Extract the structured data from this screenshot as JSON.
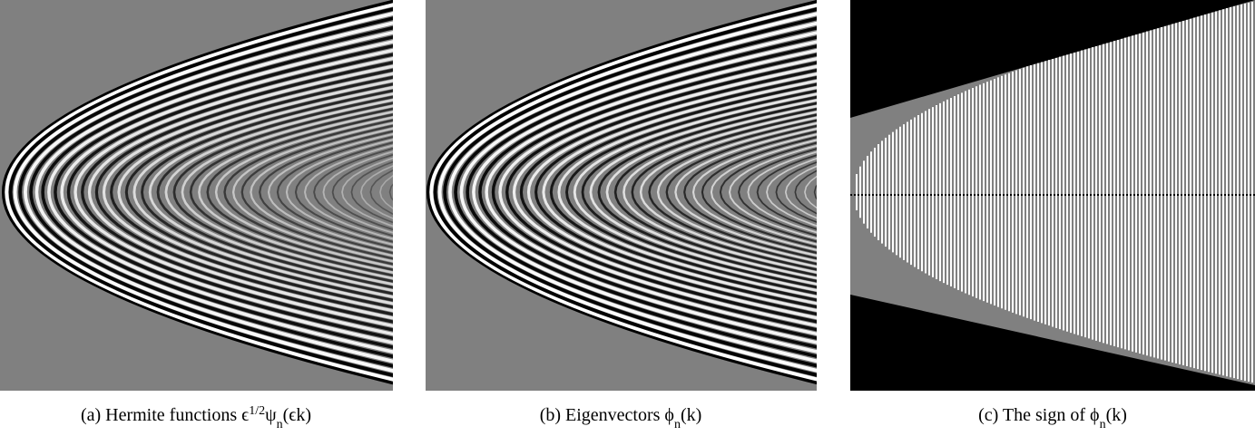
{
  "figure": {
    "panels": [
      {
        "caption": [
          {
            "t": "(a) Hermite functions ϵ"
          },
          {
            "sup": "1/2"
          },
          {
            "t": "ψ"
          },
          {
            "sub": "n"
          },
          {
            "t": "(ϵk)"
          }
        ]
      },
      {
        "caption": [
          {
            "t": "(b) Eigenvectors ϕ"
          },
          {
            "sub": "n"
          },
          {
            "t": "(k)"
          }
        ]
      },
      {
        "caption": [
          {
            "t": "(c) The sign of ϕ"
          },
          {
            "sub": "n"
          },
          {
            "t": "(k)"
          }
        ]
      }
    ]
  }
}
